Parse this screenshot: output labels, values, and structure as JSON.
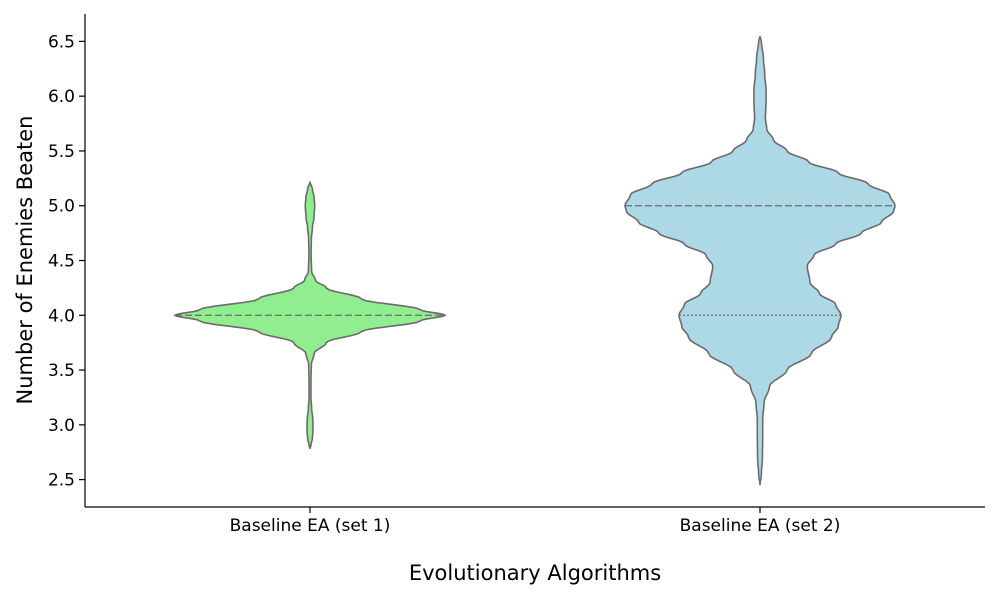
{
  "chart_data": {
    "type": "violin",
    "title": "",
    "xlabel": "Evolutionary Algorithms",
    "ylabel": "Number of Enemies Beaten",
    "ylim": [
      2.25,
      6.75
    ],
    "yticks": [
      "2.5",
      "3.0",
      "3.5",
      "4.0",
      "4.5",
      "5.0",
      "5.5",
      "6.0",
      "6.5"
    ],
    "categories": [
      "Baseline EA (set 1)",
      "Baseline EA (set 2)"
    ],
    "grid": false,
    "series": [
      {
        "category": "Baseline EA (set 1)",
        "color": "#90EE90",
        "y_min": 2.78,
        "y_max": 5.22,
        "density_profile": [
          [
            2.78,
            0.0
          ],
          [
            2.82,
            0.008
          ],
          [
            2.88,
            0.018
          ],
          [
            2.95,
            0.022
          ],
          [
            3.0,
            0.022
          ],
          [
            3.06,
            0.02
          ],
          [
            3.15,
            0.012
          ],
          [
            3.25,
            0.007
          ],
          [
            3.4,
            0.007
          ],
          [
            3.55,
            0.01
          ],
          [
            3.65,
            0.03
          ],
          [
            3.75,
            0.12
          ],
          [
            3.85,
            0.38
          ],
          [
            3.95,
            0.82
          ],
          [
            4.0,
            1.0
          ],
          [
            4.05,
            0.82
          ],
          [
            4.15,
            0.38
          ],
          [
            4.25,
            0.12
          ],
          [
            4.32,
            0.04
          ],
          [
            4.4,
            0.012
          ],
          [
            4.55,
            0.008
          ],
          [
            4.7,
            0.01
          ],
          [
            4.8,
            0.018
          ],
          [
            4.9,
            0.03
          ],
          [
            5.0,
            0.035
          ],
          [
            5.08,
            0.03
          ],
          [
            5.15,
            0.018
          ],
          [
            5.22,
            0.0
          ]
        ],
        "quartiles": [
          4.0,
          4.0,
          4.0
        ]
      },
      {
        "category": "Baseline EA (set 2)",
        "color": "#ADD8E6",
        "y_min": 2.45,
        "y_max": 6.55,
        "density_profile": [
          [
            2.45,
            0.0
          ],
          [
            2.55,
            0.01
          ],
          [
            2.7,
            0.018
          ],
          [
            2.9,
            0.02
          ],
          [
            3.05,
            0.02
          ],
          [
            3.2,
            0.03
          ],
          [
            3.35,
            0.07
          ],
          [
            3.5,
            0.2
          ],
          [
            3.65,
            0.38
          ],
          [
            3.8,
            0.53
          ],
          [
            3.9,
            0.58
          ],
          [
            4.0,
            0.6
          ],
          [
            4.1,
            0.56
          ],
          [
            4.2,
            0.44
          ],
          [
            4.3,
            0.37
          ],
          [
            4.45,
            0.35
          ],
          [
            4.55,
            0.4
          ],
          [
            4.65,
            0.56
          ],
          [
            4.75,
            0.75
          ],
          [
            4.85,
            0.9
          ],
          [
            4.95,
            0.99
          ],
          [
            5.0,
            1.0
          ],
          [
            5.1,
            0.96
          ],
          [
            5.2,
            0.8
          ],
          [
            5.3,
            0.58
          ],
          [
            5.4,
            0.36
          ],
          [
            5.5,
            0.2
          ],
          [
            5.6,
            0.1
          ],
          [
            5.7,
            0.05
          ],
          [
            5.8,
            0.04
          ],
          [
            5.95,
            0.045
          ],
          [
            6.05,
            0.045
          ],
          [
            6.2,
            0.035
          ],
          [
            6.35,
            0.025
          ],
          [
            6.5,
            0.01
          ],
          [
            6.55,
            0.0
          ]
        ],
        "quartiles": [
          4.0,
          5.0,
          5.0
        ]
      }
    ]
  }
}
